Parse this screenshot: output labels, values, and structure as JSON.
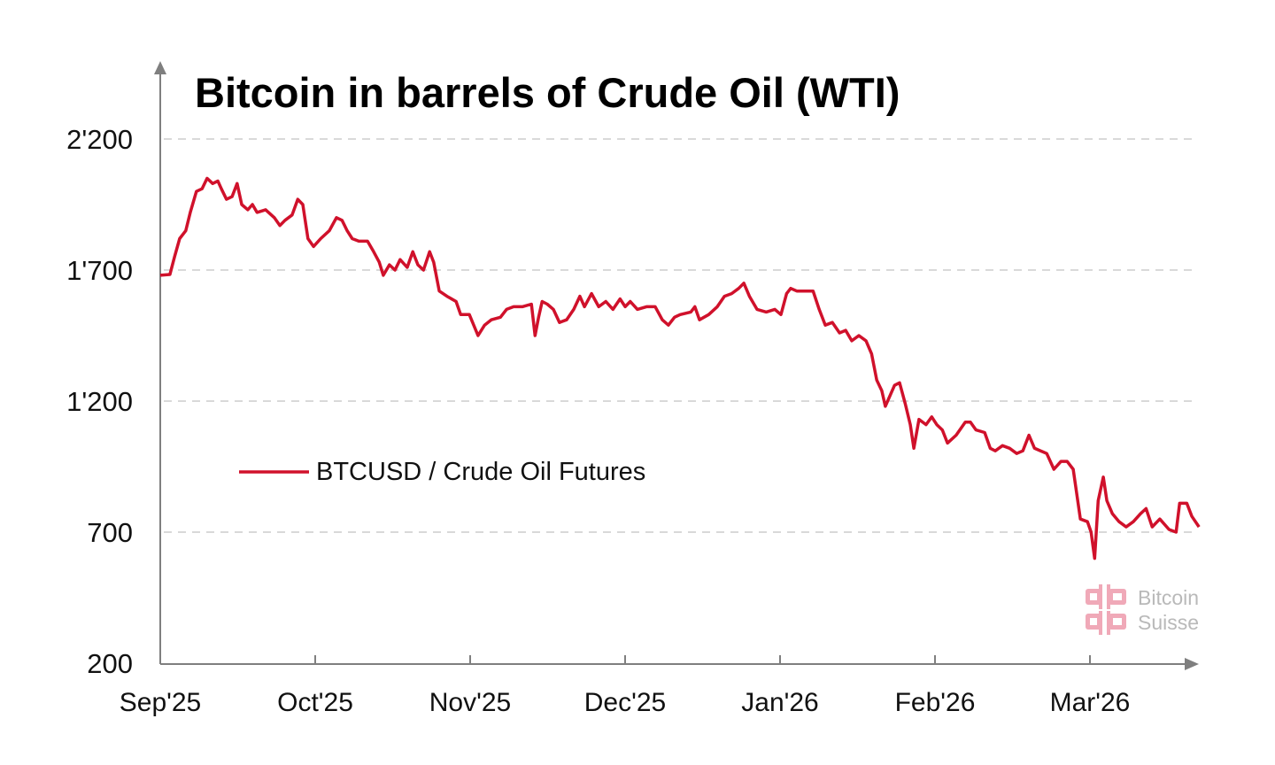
{
  "chart_data": {
    "type": "line",
    "title": "Bitcoin in barrels of Crude Oil (WTI)",
    "xlabel": "",
    "ylabel": "",
    "x_units": "days since Sep 1, 2025",
    "ylim": [
      200,
      2200
    ],
    "yticks": [
      {
        "value": 200,
        "label": "200"
      },
      {
        "value": 700,
        "label": "700"
      },
      {
        "value": 1200,
        "label": "1'200"
      },
      {
        "value": 1700,
        "label": "1'700"
      },
      {
        "value": 2200,
        "label": "2'200"
      }
    ],
    "xticks": [
      "Sep'25",
      "Oct'25",
      "Nov'25",
      "Dec'25",
      "Jan'26",
      "Feb'26",
      "Mar'26"
    ],
    "xlim_days": [
      0,
      206
    ],
    "grid": "horizontal dashed",
    "legend_position": "center-left",
    "series": [
      {
        "name": "BTCUSD / Crude Oil Futures",
        "color": "#d0112b",
        "points": [
          [
            0,
            1680
          ],
          [
            1.9,
            1683
          ],
          [
            2.8,
            1750
          ],
          [
            3.8,
            1820
          ],
          [
            5,
            1850
          ],
          [
            5.9,
            1920
          ],
          [
            7.1,
            2000
          ],
          [
            8.2,
            2010
          ],
          [
            9.2,
            2050
          ],
          [
            10.3,
            2030
          ],
          [
            11.3,
            2040
          ],
          [
            12,
            2010
          ],
          [
            13,
            1970
          ],
          [
            14.1,
            1980
          ],
          [
            15.1,
            2030
          ],
          [
            16,
            1950
          ],
          [
            17.2,
            1930
          ],
          [
            18.1,
            1950
          ],
          [
            19,
            1920
          ],
          [
            20.7,
            1930
          ],
          [
            22.4,
            1900
          ],
          [
            23.5,
            1870
          ],
          [
            24.5,
            1890
          ],
          [
            25.9,
            1910
          ],
          [
            27,
            1970
          ],
          [
            28,
            1950
          ],
          [
            29,
            1820
          ],
          [
            30.1,
            1790
          ],
          [
            31.5,
            1820
          ],
          [
            33.2,
            1850
          ],
          [
            34.6,
            1900
          ],
          [
            35.7,
            1890
          ],
          [
            36.7,
            1850
          ],
          [
            37.7,
            1820
          ],
          [
            39,
            1810
          ],
          [
            40.7,
            1810
          ],
          [
            41.9,
            1770
          ],
          [
            43,
            1730
          ],
          [
            43.8,
            1680
          ],
          [
            45,
            1720
          ],
          [
            46.1,
            1700
          ],
          [
            47.1,
            1740
          ],
          [
            48.5,
            1710
          ],
          [
            49.6,
            1770
          ],
          [
            50.6,
            1720
          ],
          [
            51.7,
            1700
          ],
          [
            52.9,
            1770
          ],
          [
            53.7,
            1730
          ],
          [
            54.8,
            1620
          ],
          [
            56.3,
            1600
          ],
          [
            58.1,
            1580
          ],
          [
            59,
            1530
          ],
          [
            60.7,
            1530
          ],
          [
            62.4,
            1450
          ],
          [
            63.7,
            1490
          ],
          [
            65,
            1510
          ],
          [
            66.8,
            1520
          ],
          [
            68,
            1550
          ],
          [
            69.4,
            1560
          ],
          [
            71.1,
            1560
          ],
          [
            72.9,
            1570
          ],
          [
            73.6,
            1450
          ],
          [
            74.3,
            1520
          ],
          [
            75,
            1580
          ],
          [
            76,
            1570
          ],
          [
            77.2,
            1550
          ],
          [
            78.4,
            1500
          ],
          [
            79.8,
            1510
          ],
          [
            81.2,
            1550
          ],
          [
            82.4,
            1600
          ],
          [
            83.3,
            1560
          ],
          [
            84.7,
            1610
          ],
          [
            86.1,
            1560
          ],
          [
            87.5,
            1580
          ],
          [
            88.9,
            1550
          ],
          [
            90.3,
            1590
          ],
          [
            91.3,
            1560
          ],
          [
            92.3,
            1580
          ],
          [
            93.7,
            1550
          ],
          [
            95.5,
            1560
          ],
          [
            97.2,
            1560
          ],
          [
            98.6,
            1510
          ],
          [
            99.8,
            1490
          ],
          [
            101,
            1520
          ],
          [
            102.1,
            1530
          ],
          [
            104.2,
            1540
          ],
          [
            105,
            1560
          ],
          [
            105.9,
            1510
          ],
          [
            107.7,
            1530
          ],
          [
            109.4,
            1560
          ],
          [
            110.8,
            1600
          ],
          [
            112.2,
            1610
          ],
          [
            113.6,
            1630
          ],
          [
            114.6,
            1650
          ],
          [
            115.7,
            1600
          ],
          [
            117.2,
            1550
          ],
          [
            119,
            1540
          ],
          [
            120.7,
            1550
          ],
          [
            121.9,
            1530
          ],
          [
            123,
            1610
          ],
          [
            123.8,
            1630
          ],
          [
            125,
            1620
          ],
          [
            126.8,
            1620
          ],
          [
            128.2,
            1620
          ],
          [
            129.4,
            1550
          ],
          [
            130.6,
            1490
          ],
          [
            132,
            1500
          ],
          [
            133.4,
            1460
          ],
          [
            134.6,
            1470
          ],
          [
            135.8,
            1430
          ],
          [
            137.2,
            1450
          ],
          [
            138.6,
            1430
          ],
          [
            139.7,
            1380
          ],
          [
            140.7,
            1280
          ],
          [
            141.7,
            1240
          ],
          [
            142.4,
            1180
          ],
          [
            144.2,
            1260
          ],
          [
            145.2,
            1270
          ],
          [
            146.3,
            1190
          ],
          [
            147.3,
            1110
          ],
          [
            148,
            1020
          ],
          [
            149,
            1130
          ],
          [
            150.4,
            1110
          ],
          [
            151.5,
            1140
          ],
          [
            152.5,
            1110
          ],
          [
            153.6,
            1090
          ],
          [
            154.6,
            1040
          ],
          [
            156.3,
            1070
          ],
          [
            158.1,
            1120
          ],
          [
            159.1,
            1120
          ],
          [
            160.2,
            1090
          ],
          [
            161.9,
            1080
          ],
          [
            163,
            1020
          ],
          [
            164,
            1010
          ],
          [
            165.4,
            1030
          ],
          [
            166.8,
            1020
          ],
          [
            168.2,
            1000
          ],
          [
            169.4,
            1010
          ],
          [
            170.6,
            1070
          ],
          [
            171.7,
            1020
          ],
          [
            172.9,
            1010
          ],
          [
            174.1,
            1000
          ],
          [
            175.5,
            940
          ],
          [
            176.9,
            970
          ],
          [
            178.1,
            970
          ],
          [
            179.3,
            940
          ],
          [
            180.7,
            750
          ],
          [
            182.1,
            740
          ],
          [
            182.8,
            700
          ],
          [
            183.5,
            600
          ],
          [
            184.2,
            820
          ],
          [
            185.2,
            910
          ],
          [
            185.9,
            820
          ],
          [
            187,
            770
          ],
          [
            188.3,
            740
          ],
          [
            189.7,
            720
          ],
          [
            191.1,
            740
          ],
          [
            192.5,
            770
          ],
          [
            193.6,
            790
          ],
          [
            194.8,
            720
          ],
          [
            196.3,
            750
          ],
          [
            198.1,
            710
          ],
          [
            199.5,
            700
          ],
          [
            200.2,
            810
          ],
          [
            201.6,
            810
          ],
          [
            202.6,
            760
          ],
          [
            204,
            720
          ]
        ]
      }
    ]
  },
  "watermark": {
    "line1": "Bitcoin",
    "line2": "Suisse",
    "logo_color": "#f0a9b8"
  },
  "colors": {
    "grid": "#d9d9d9",
    "axis": "#7f7f7f",
    "line": "#d0112b"
  }
}
